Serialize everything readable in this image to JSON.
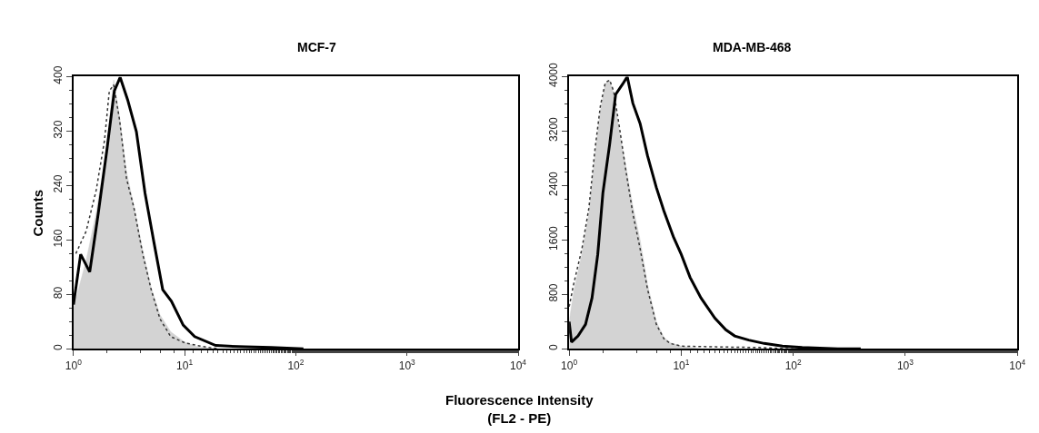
{
  "chart_data": [
    {
      "type": "line",
      "title": "MCF-7",
      "xlabel": "Fluorescence Intensity\n(FL2 - PE)",
      "ylabel": "Counts",
      "log": "x",
      "xlim": [
        1,
        10000
      ],
      "xticks": [
        {
          "value": 1,
          "label": "10$^{0}$"
        },
        {
          "value": 10,
          "label": "10$^{1}$"
        },
        {
          "value": 100,
          "label": "10$^{2}$"
        },
        {
          "value": 1000,
          "label": "10$^{3}$"
        },
        {
          "value": 10000,
          "label": "10$^{4}$"
        }
      ],
      "ylim": [
        0,
        400
      ],
      "yticks": [
        0,
        80,
        160,
        240,
        320,
        400
      ],
      "marker": "none",
      "series": [
        {
          "type": "area",
          "color": "#d3d3d3",
          "x": [
            1,
            1.3,
            1.6,
            2,
            2.3,
            2.6,
            3,
            3.5,
            4.2,
            5,
            6,
            7.5,
            10,
            13,
            20
          ],
          "values": [
            60,
            130,
            200,
            300,
            395,
            340,
            260,
            210,
            145,
            90,
            50,
            25,
            10,
            3,
            0
          ]
        },
        {
          "type": "line",
          "line_style": "dotted",
          "color": "#333333",
          "x": [
            1.05,
            1.3,
            1.6,
            1.9,
            2.1,
            2.3,
            2.6,
            3,
            3.5,
            4.2,
            5,
            6,
            7.5,
            10,
            13,
            20
          ],
          "values": [
            140,
            173,
            233,
            306,
            379,
            388,
            336,
            250,
            207,
            139,
            87,
            44,
            18,
            9,
            5,
            0
          ]
        },
        {
          "line_style": "solid",
          "color": "#000000",
          "x": [
            1,
            1.16,
            1.4,
            1.67,
            2,
            2.33,
            2.63,
            3.07,
            3.68,
            4.4,
            5.3,
            6.35,
            7.6,
            9.7,
            12.3,
            19,
            35,
            60,
            117
          ],
          "values": [
            65,
            139,
            113,
            199,
            293,
            379,
            399,
            366,
            319,
            229,
            156,
            87,
            70,
            35,
            18,
            5,
            3,
            2,
            0
          ]
        }
      ]
    },
    {
      "type": "line",
      "title": "MDA-MB-468",
      "log": "x",
      "xlim": [
        1,
        10000
      ],
      "xticks": [
        {
          "value": 1,
          "label": "10$^{0}$"
        },
        {
          "value": 10,
          "label": "10$^{1}$"
        },
        {
          "value": 100,
          "label": "10$^{2}$"
        },
        {
          "value": 1000,
          "label": "10$^{3}$"
        },
        {
          "value": 10000,
          "label": "10$^{4}$"
        }
      ],
      "ylim": [
        0,
        4000
      ],
      "yticks": [
        0,
        800,
        1600,
        2400,
        3200,
        4000
      ],
      "marker": "none",
      "series": [
        {
          "type": "area",
          "color": "#d3d3d3",
          "x": [
            1,
            1.1,
            1.3,
            1.5,
            1.7,
            1.9,
            2.1,
            2.3,
            2.5,
            2.8,
            3.2,
            3.7,
            4.3,
            5,
            6,
            7,
            8,
            10,
            15
          ],
          "values": [
            400,
            850,
            1400,
            2000,
            2850,
            3500,
            3900,
            3950,
            3750,
            3200,
            2700,
            2100,
            1600,
            950,
            400,
            170,
            90,
            40,
            0
          ]
        },
        {
          "type": "line",
          "line_style": "dotted",
          "color": "#333333",
          "x": [
            1,
            1.1,
            1.3,
            1.5,
            1.7,
            1.9,
            2.1,
            2.3,
            2.5,
            2.8,
            3.2,
            3.7,
            4.3,
            5,
            6,
            7,
            8,
            10,
            20,
            50,
            100
          ],
          "values": [
            620,
            960,
            1470,
            2070,
            2930,
            3570,
            3910,
            3950,
            3780,
            3270,
            2630,
            1990,
            1470,
            880,
            360,
            150,
            80,
            40,
            30,
            20,
            0
          ]
        },
        {
          "line_style": "solid",
          "color": "#000000",
          "x": [
            1,
            1.05,
            1.2,
            1.4,
            1.6,
            1.8,
            2,
            2.3,
            2.6,
            3,
            3.3,
            3.7,
            4.3,
            5,
            6,
            7,
            8.5,
            10,
            12,
            15,
            20,
            25,
            30,
            40,
            55,
            80,
            120,
            250,
            400
          ],
          "values": [
            400,
            100,
            190,
            360,
            750,
            1390,
            2290,
            3010,
            3740,
            3890,
            4000,
            3610,
            3310,
            2840,
            2370,
            2030,
            1650,
            1390,
            1050,
            750,
            450,
            280,
            190,
            130,
            80,
            40,
            20,
            0,
            0
          ]
        }
      ]
    }
  ]
}
